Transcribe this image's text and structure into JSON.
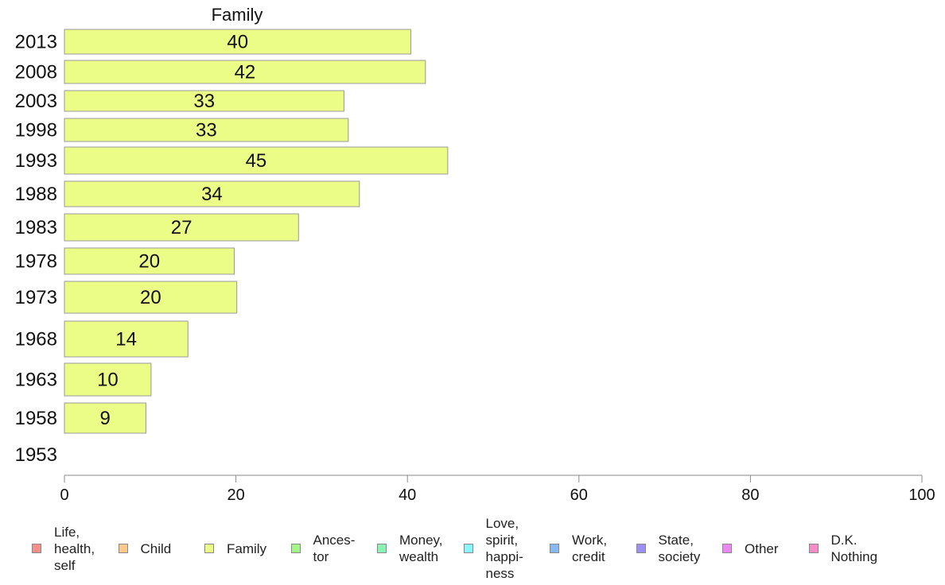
{
  "chart_data": {
    "type": "bar",
    "orientation": "horizontal",
    "title": "Family",
    "categories": [
      "2013",
      "2008",
      "2003",
      "1998",
      "1993",
      "1988",
      "1983",
      "1978",
      "1973",
      "1968",
      "1963",
      "1958",
      "1953"
    ],
    "series": [
      {
        "name": "Family",
        "values": [
          40.4,
          42.1,
          32.6,
          33.1,
          44.7,
          34.4,
          27.3,
          19.8,
          20.1,
          14.4,
          10.1,
          9.5,
          null
        ],
        "labels": [
          "40",
          "42",
          "33",
          "33",
          "45",
          "34",
          "27",
          "20",
          "20",
          "14",
          "10",
          "9",
          ""
        ]
      }
    ],
    "xlim": [
      0,
      100
    ],
    "xticks": [
      "0",
      "20",
      "40",
      "60",
      "80",
      "100"
    ],
    "bar_color": "#ecfd87",
    "bar_border_color": "#999999",
    "legend_position": "bottom",
    "legend": [
      {
        "label": "Life,\nhealth,\nself",
        "color": "#f88f8a"
      },
      {
        "label": "Child",
        "color": "#fcc98a"
      },
      {
        "label": "Family",
        "color": "#ecfd87"
      },
      {
        "label": "Ances-\ntor",
        "color": "#a3f787"
      },
      {
        "label": "Money,\nwealth",
        "color": "#88f5b7"
      },
      {
        "label": "Love,\nspirit,\nhappi-\nness",
        "color": "#8af8fb"
      },
      {
        "label": "Work,\ncredit",
        "color": "#89b8f4"
      },
      {
        "label": "State,\nsociety",
        "color": "#9c90f6"
      },
      {
        "label": "Other",
        "color": "#ee86f6"
      },
      {
        "label": "D.K.\nNothing",
        "color": "#f68dc6"
      }
    ]
  }
}
